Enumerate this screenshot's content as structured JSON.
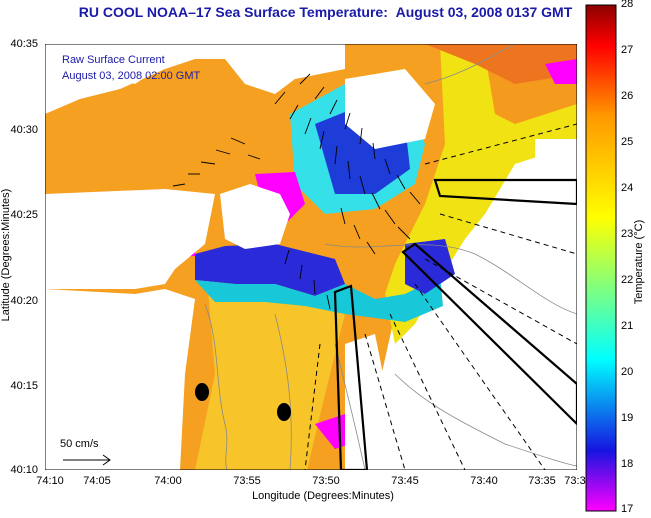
{
  "title": {
    "left": "RU COOL  NOAA–17  Sea Surface Temperature:",
    "right": "August 03, 2008 0137 GMT"
  },
  "legend": {
    "line1": "Raw Surface Current",
    "line2": "August 03, 2008 02:00 GMT"
  },
  "axes": {
    "xlabel": "Longitude (Degrees:Minutes)",
    "ylabel": "Latitude (Degrees:Minutes)",
    "xticks": [
      "74:10",
      "74:05",
      "74:00",
      "73:55",
      "73:50",
      "73:45",
      "73:40",
      "73:35",
      "73:3"
    ],
    "yticks": [
      "40:35",
      "40:30",
      "40:25",
      "40:20",
      "40:15",
      "40:10"
    ]
  },
  "colorbar": {
    "label": "Temperature (°C)",
    "ticks": [
      "28",
      "27",
      "26",
      "25",
      "24",
      "23",
      "22",
      "21",
      "20",
      "19",
      "18",
      "17"
    ],
    "range": [
      17,
      28
    ],
    "colors": [
      "#ff00ff",
      "#1515e0",
      "#00ffff",
      "#ffff00",
      "#ff9900",
      "#ff0000",
      "#8b0000"
    ]
  },
  "scale": {
    "label": "50 cm/s"
  }
}
